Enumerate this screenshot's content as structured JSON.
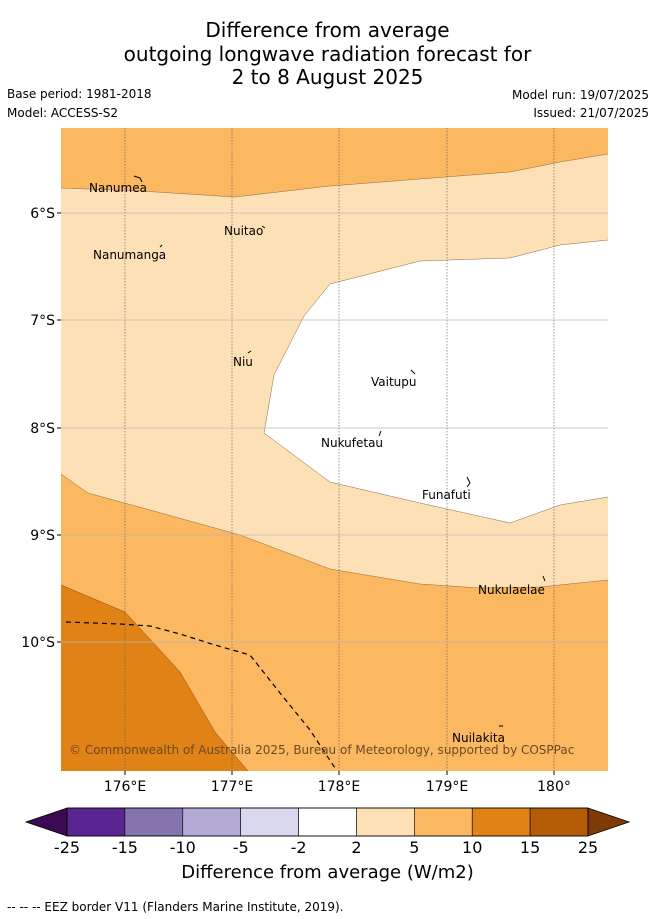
{
  "header": {
    "title_lines": [
      "Difference from average",
      "outgoing longwave radiation forecast for",
      "2 to 8 August 2025"
    ],
    "base_period": "Base period: 1981-2018",
    "model": "Model: ACCESS-S2",
    "model_run": "Model run: 19/07/2025",
    "issued": "Issued: 21/07/2025"
  },
  "map": {
    "x_ticks": [
      "176°E",
      "177°E",
      "178°E",
      "179°E",
      "180°"
    ],
    "y_ticks": [
      "6°S",
      "7°S",
      "8°S",
      "9°S",
      "10°S"
    ],
    "places": [
      "Nanumea",
      "Nuitao",
      "Nanumanga",
      "Niu",
      "Vaitupu",
      "Nukufetau",
      "Funafuti",
      "Nukulaelae",
      "Nuilakita"
    ],
    "copyright": "© Commonwealth of Australia 2025, Bureau of Meteorology, supported by COSPPac"
  },
  "colorbar": {
    "labels": [
      "-25",
      "-15",
      "-10",
      "-5",
      "-2",
      "2",
      "5",
      "10",
      "15",
      "25"
    ],
    "colors": [
      "#5a2590",
      "#8475b0",
      "#b2a9d4",
      "#d9d8ec",
      "#ffffff",
      "#fde0b6",
      "#fbb861",
      "#e08215",
      "#b45b07"
    ],
    "low_extend_color": "#3b0a52",
    "high_extend_color": "#7e3b08",
    "title": "Difference from average (W/m2)"
  },
  "footer": {
    "legend": "-- -- -- EEZ border V11 (Flanders Marine Institute, 2019)."
  }
}
